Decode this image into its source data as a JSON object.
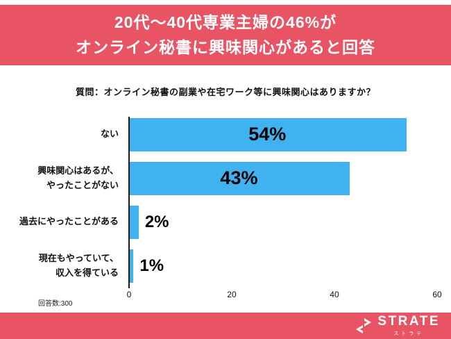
{
  "header": {
    "title_line1": "20代〜40代専業主婦の46%が",
    "title_line2": "オンライン秘書に興味関心があると回答"
  },
  "question": "質問：オンライン秘書の副業や在宅ワーク等に興味関心はありますか？",
  "chart_data": {
    "type": "bar",
    "orientation": "horizontal",
    "title": "質問：オンライン秘書の副業や在宅ワーク等に興味関心はありますか？",
    "categories": [
      "ない",
      "興味関心はあるが、\nやったことがない",
      "過去にやったことがある",
      "現在もやっていて、\n収入を得ている"
    ],
    "values": [
      54,
      43,
      2,
      1
    ],
    "value_labels": [
      "54%",
      "43%",
      "2%",
      "1%"
    ],
    "xlim": [
      0,
      60
    ],
    "x_ticks": [
      0,
      20,
      40,
      60
    ],
    "grid": false,
    "legend": false,
    "bar_color": "#41b2f0"
  },
  "footnote": "回答数:300",
  "footer": {
    "brand": "STRATE",
    "brand_sub": "ストラテ"
  },
  "colors": {
    "accent_red": "#e95464",
    "bar_blue": "#41b2f0",
    "text": "#111111"
  }
}
